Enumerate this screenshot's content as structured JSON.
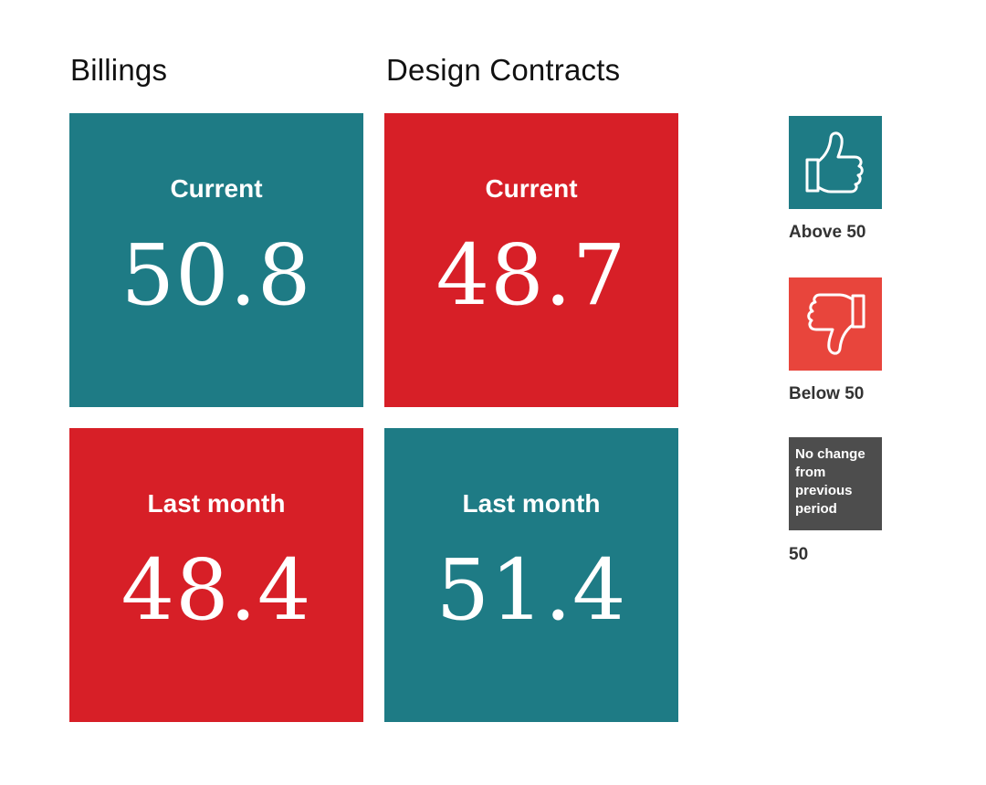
{
  "colors": {
    "above": "#1e7b85",
    "below": "#d71f27",
    "below_legend": "#e8453c",
    "no_change": "#4d4d4d"
  },
  "chart_data": {
    "type": "table",
    "columns": [
      {
        "title": "Billings",
        "tiles": [
          {
            "label": "Current",
            "value": "50.8",
            "status": "above"
          },
          {
            "label": "Last month",
            "value": "48.4",
            "status": "below"
          }
        ]
      },
      {
        "title": "Design Contracts",
        "tiles": [
          {
            "label": "Current",
            "value": "48.7",
            "status": "below"
          },
          {
            "label": "Last month",
            "value": "51.4",
            "status": "above"
          }
        ]
      }
    ],
    "legend": [
      {
        "label": "Above 50",
        "icon": "thumbs-up-icon",
        "status": "above"
      },
      {
        "label": "Below 50",
        "icon": "thumbs-down-icon",
        "status": "below"
      },
      {
        "label": "50",
        "box_text": "No change from previous period",
        "status": "no_change"
      }
    ]
  }
}
